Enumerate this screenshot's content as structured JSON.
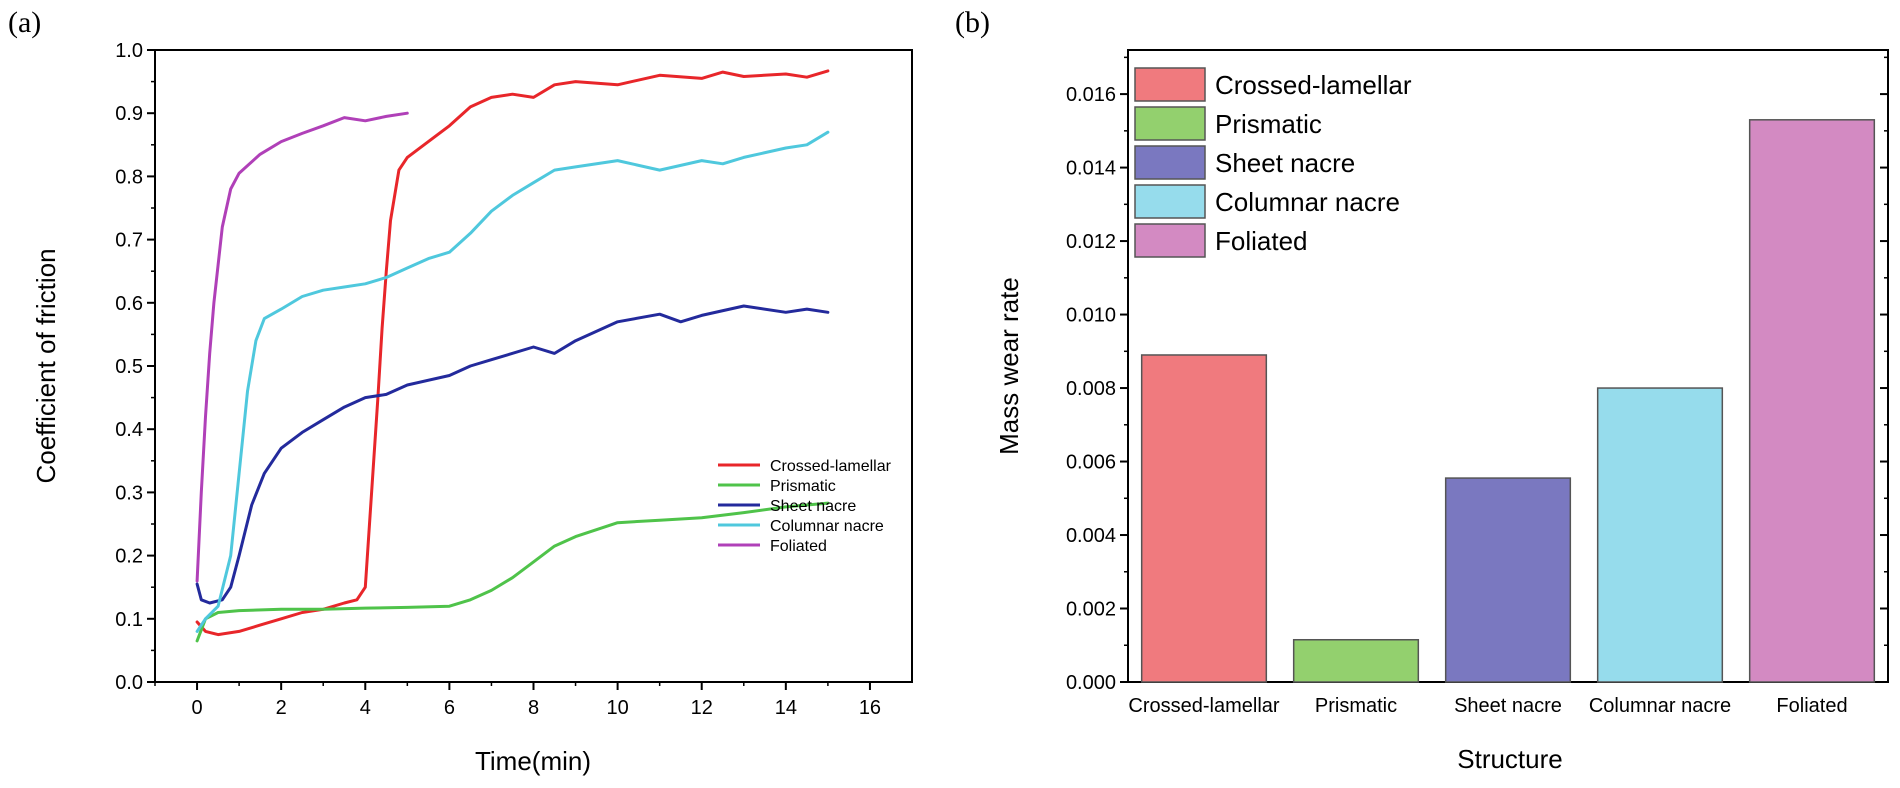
{
  "panel_a_label": "(a)",
  "panel_b_label": "(b)",
  "chart_data": [
    {
      "type": "line",
      "panel": "(a)",
      "title": "",
      "xlabel": "Time(min)",
      "ylabel": "Coefficient of friction",
      "xlim": [
        -1,
        17
      ],
      "ylim": [
        0,
        1.0
      ],
      "xticks": [
        0,
        2,
        4,
        6,
        8,
        10,
        12,
        14,
        16
      ],
      "yticks": [
        0.0,
        0.1,
        0.2,
        0.3,
        0.4,
        0.5,
        0.6,
        0.7,
        0.8,
        0.9,
        1.0
      ],
      "ytick_labels": [
        "0.0",
        "0.1",
        "0.2",
        "0.3",
        "0.4",
        "0.5",
        "0.6",
        "0.7",
        "0.8",
        "0.9",
        "1.0"
      ],
      "legend_position": "bottom-right",
      "series": [
        {
          "name": "Crossed-lamellar",
          "color": "#e8262a",
          "x": [
            0,
            0.2,
            0.5,
            1,
            1.5,
            2,
            2.5,
            3,
            3.5,
            3.8,
            4.0,
            4.1,
            4.2,
            4.3,
            4.4,
            4.5,
            4.6,
            4.8,
            5.0,
            5.5,
            6,
            6.5,
            7,
            7.5,
            8,
            8.5,
            9,
            10,
            11,
            12,
            12.5,
            13,
            14,
            14.5,
            15
          ],
          "y": [
            0.095,
            0.08,
            0.075,
            0.08,
            0.09,
            0.1,
            0.11,
            0.115,
            0.125,
            0.13,
            0.15,
            0.25,
            0.35,
            0.45,
            0.56,
            0.65,
            0.73,
            0.81,
            0.83,
            0.855,
            0.88,
            0.91,
            0.925,
            0.93,
            0.925,
            0.945,
            0.95,
            0.945,
            0.96,
            0.955,
            0.965,
            0.958,
            0.962,
            0.957,
            0.967
          ]
        },
        {
          "name": "Prismatic",
          "color": "#4fc34a",
          "x": [
            0,
            0.2,
            0.5,
            1,
            2,
            3,
            4,
            5,
            6,
            6.5,
            7,
            7.5,
            8,
            8.5,
            9,
            10,
            11,
            12,
            13,
            14,
            15
          ],
          "y": [
            0.065,
            0.1,
            0.11,
            0.113,
            0.115,
            0.115,
            0.117,
            0.118,
            0.12,
            0.13,
            0.145,
            0.165,
            0.19,
            0.215,
            0.23,
            0.252,
            0.256,
            0.26,
            0.268,
            0.277,
            0.283
          ]
        },
        {
          "name": "Sheet nacre",
          "color": "#232a9c",
          "x": [
            0,
            0.1,
            0.3,
            0.6,
            0.8,
            1,
            1.3,
            1.6,
            2,
            2.5,
            3,
            3.5,
            4,
            4.5,
            5,
            6,
            6.5,
            7,
            8,
            8.5,
            9,
            10,
            11,
            11.5,
            12,
            13,
            14,
            14.5,
            15
          ],
          "y": [
            0.155,
            0.13,
            0.125,
            0.13,
            0.15,
            0.2,
            0.28,
            0.33,
            0.37,
            0.395,
            0.415,
            0.435,
            0.45,
            0.455,
            0.47,
            0.485,
            0.5,
            0.51,
            0.53,
            0.52,
            0.54,
            0.57,
            0.582,
            0.57,
            0.58,
            0.595,
            0.585,
            0.59,
            0.585
          ]
        },
        {
          "name": "Columnar nacre",
          "color": "#4fc8dd",
          "x": [
            0,
            0.2,
            0.5,
            0.8,
            1,
            1.2,
            1.4,
            1.6,
            2,
            2.5,
            3,
            3.5,
            4,
            4.5,
            5,
            5.5,
            6,
            6.5,
            7,
            7.5,
            8,
            8.5,
            9,
            10,
            11,
            12,
            12.5,
            13,
            14,
            14.5,
            15
          ],
          "y": [
            0.08,
            0.1,
            0.12,
            0.2,
            0.33,
            0.46,
            0.54,
            0.575,
            0.59,
            0.61,
            0.62,
            0.625,
            0.63,
            0.64,
            0.655,
            0.67,
            0.68,
            0.71,
            0.745,
            0.77,
            0.79,
            0.81,
            0.815,
            0.825,
            0.81,
            0.825,
            0.82,
            0.83,
            0.845,
            0.85,
            0.87
          ]
        },
        {
          "name": "Foliated",
          "color": "#b040b8",
          "x": [
            0,
            0.1,
            0.2,
            0.3,
            0.4,
            0.5,
            0.6,
            0.8,
            1,
            1.5,
            2,
            2.5,
            3,
            3.5,
            4,
            4.5,
            5
          ],
          "y": [
            0.16,
            0.3,
            0.42,
            0.52,
            0.6,
            0.66,
            0.72,
            0.78,
            0.805,
            0.835,
            0.855,
            0.868,
            0.88,
            0.893,
            0.888,
            0.895,
            0.9
          ]
        }
      ]
    },
    {
      "type": "bar",
      "panel": "(b)",
      "title": "",
      "xlabel": "Structure",
      "ylabel": "Mass wear rate",
      "ylim": [
        0,
        0.0172
      ],
      "yticks": [
        0,
        0.002,
        0.004,
        0.006,
        0.008,
        0.01,
        0.012,
        0.014,
        0.016
      ],
      "ytick_labels": [
        "0.000",
        "0.002",
        "0.004",
        "0.006",
        "0.008",
        "0.010",
        "0.012",
        "0.014",
        "0.016"
      ],
      "categories": [
        "Crossed-lamellar",
        "Prismatic",
        "Sheet nacre",
        "Columnar nacre",
        "Foliated"
      ],
      "values": [
        0.0089,
        0.00115,
        0.00555,
        0.008,
        0.0153
      ],
      "colors": [
        "#f07a7e",
        "#93d06e",
        "#7a78c0",
        "#96dcec",
        "#d38ac2"
      ],
      "legend_position": "top-left",
      "legend": [
        "Crossed-lamellar",
        "Prismatic",
        "Sheet nacre",
        "Columnar nacre",
        "Foliated"
      ]
    }
  ]
}
